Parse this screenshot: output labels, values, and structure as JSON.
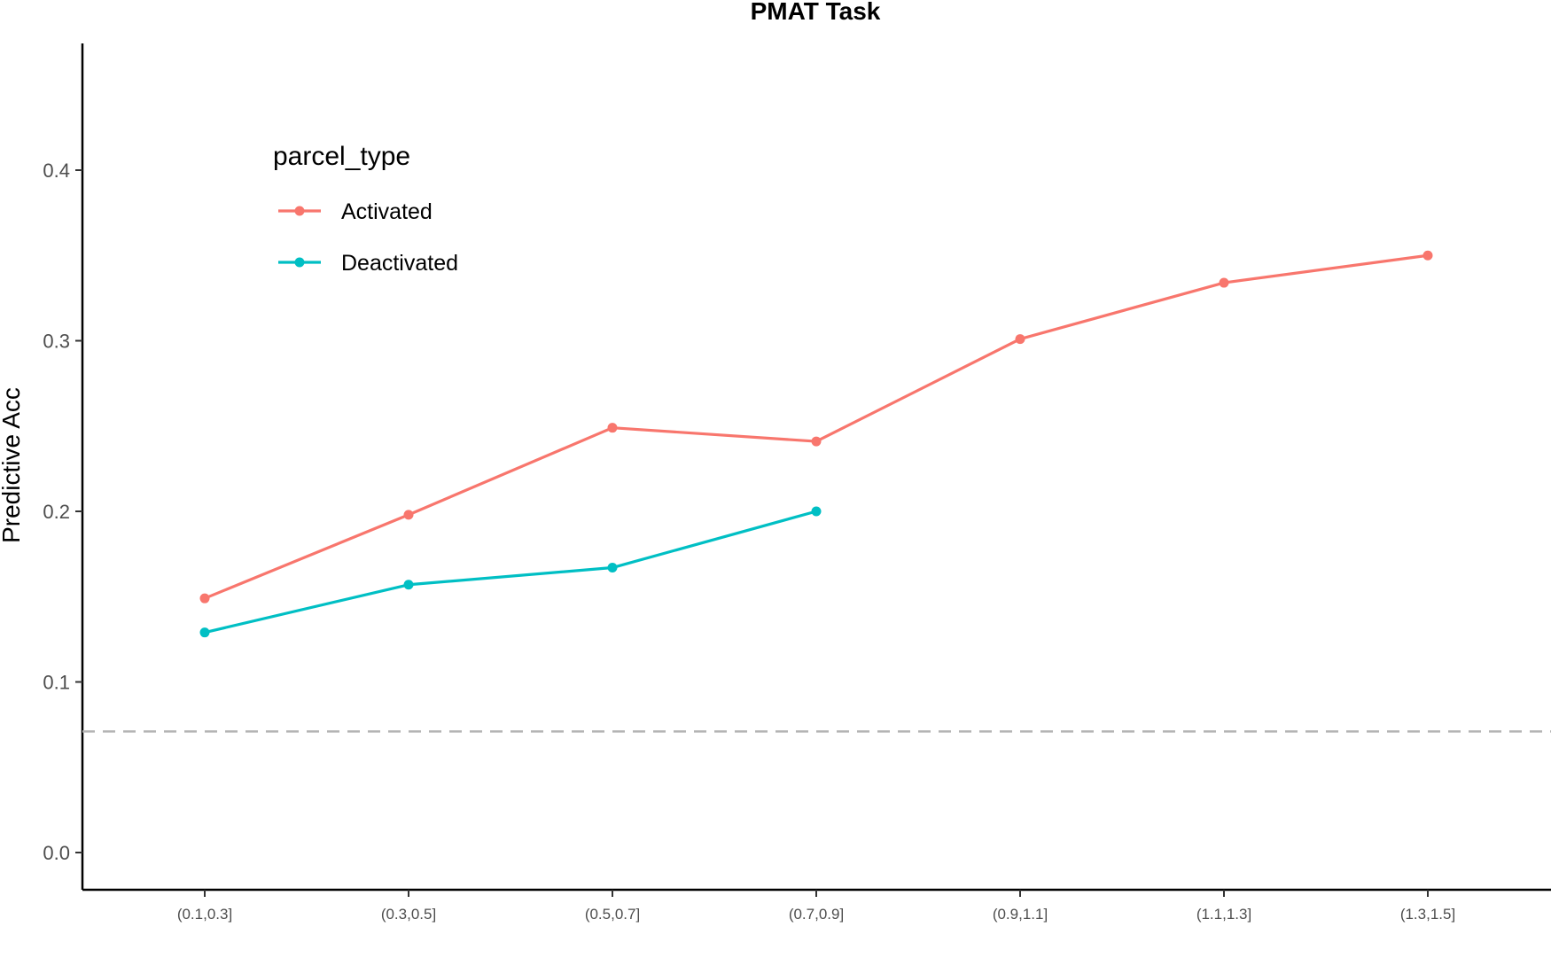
{
  "chart_data": {
    "type": "line",
    "title": "PMAT Task",
    "xlabel": "",
    "ylabel": "Predictive Acc",
    "categories": [
      "(0.1,0.3]",
      "(0.3,0.5]",
      "(0.5,0.7]",
      "(0.7,0.9]",
      "(0.9,1.1]",
      "(1.1,1.3]",
      "(1.3,1.5]"
    ],
    "ylim": [
      -0.02,
      0.47
    ],
    "yticks": [
      0.0,
      0.1,
      0.2,
      0.3,
      0.4
    ],
    "ytick_labels": [
      "0.0",
      "0.1",
      "0.2",
      "0.3",
      "0.4"
    ],
    "grid": false,
    "legend": {
      "title": "parcel_type",
      "position": "top-left"
    },
    "series": [
      {
        "name": "Activated",
        "color": "#F8766D",
        "values": [
          0.149,
          0.198,
          0.249,
          0.241,
          0.301,
          0.334,
          0.35
        ]
      },
      {
        "name": "Deactivated",
        "color": "#00BFC4",
        "values": [
          0.129,
          0.157,
          0.167,
          0.2,
          null,
          null,
          null
        ]
      }
    ],
    "reference_line": {
      "y": 0.071,
      "style": "dashed",
      "color": "#b3b3b3"
    }
  }
}
